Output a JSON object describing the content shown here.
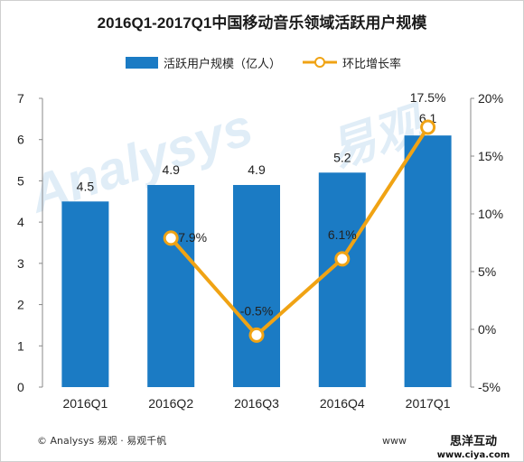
{
  "chart_data": {
    "type": "bar",
    "title": "2016Q1-2017Q1中国移动音乐领域活跃用户规模",
    "categories": [
      "2016Q1",
      "2016Q2",
      "2016Q3",
      "2016Q4",
      "2017Q1"
    ],
    "series": [
      {
        "name": "活跃用户规模（亿人）",
        "type": "bar",
        "axis": "left",
        "values": [
          4.5,
          4.9,
          4.9,
          5.2,
          6.1
        ],
        "labels": [
          "4.5",
          "4.9",
          "4.9",
          "5.2",
          "6.1"
        ],
        "color": "#1b7bc4"
      },
      {
        "name": "环比增长率",
        "type": "line",
        "axis": "right",
        "values": [
          null,
          7.9,
          -0.5,
          6.1,
          17.5
        ],
        "labels": [
          "",
          "7.9%",
          "-0.5%",
          "6.1%",
          "17.5%"
        ],
        "color": "#f0a314"
      }
    ],
    "left_axis": {
      "ylim": [
        0,
        7
      ],
      "ticks": [
        0,
        1,
        2,
        3,
        4,
        5,
        6,
        7
      ],
      "tick_labels": [
        "0",
        "1",
        "2",
        "3",
        "4",
        "5",
        "6",
        "7"
      ]
    },
    "right_axis": {
      "ylim": [
        -5,
        20
      ],
      "ticks": [
        -5,
        0,
        5,
        10,
        15,
        20
      ],
      "tick_labels": [
        "-5%",
        "0%",
        "5%",
        "10%",
        "15%",
        "20%"
      ]
    },
    "grid": false,
    "legend": "top-center"
  },
  "watermark": {
    "brand_latin": "Analysys",
    "brand_cn": "易观"
  },
  "footer": {
    "source": "© Analysys 易观 · 易观千帆",
    "url": "www",
    "stamp_line1": "思洋互动",
    "stamp_line2": "www.ciya.com"
  }
}
